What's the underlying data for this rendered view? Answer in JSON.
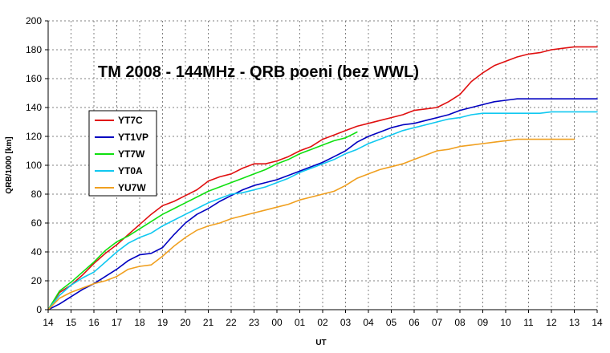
{
  "chart_data": {
    "type": "line",
    "title": "TM 2008 - 144MHz - QRB poeni (bez WWL)",
    "xlabel": "UT",
    "ylabel": "QRB/1000 [km]",
    "ylim": [
      0,
      200
    ],
    "yticks": [
      0,
      20,
      40,
      60,
      80,
      100,
      120,
      140,
      160,
      180,
      200
    ],
    "xlim": [
      0,
      24
    ],
    "xtick_labels": [
      "14",
      "15",
      "16",
      "17",
      "18",
      "19",
      "20",
      "21",
      "22",
      "23",
      "00",
      "01",
      "02",
      "03",
      "04",
      "05",
      "06",
      "07",
      "08",
      "09",
      "10",
      "11",
      "12",
      "13",
      "14"
    ],
    "grid": true,
    "legend_position": "left",
    "series": [
      {
        "name": "YT7C",
        "color": "#e01010",
        "x": [
          0,
          0.5,
          1,
          1.5,
          2,
          2.5,
          3,
          3.5,
          4,
          4.5,
          5,
          5.5,
          6,
          6.5,
          7,
          7.5,
          8,
          8.5,
          9,
          9.5,
          10,
          10.5,
          11,
          11.5,
          12,
          12.5,
          13,
          13.5,
          14,
          14.5,
          15,
          15.5,
          16,
          16.5,
          17,
          17.5,
          18,
          18.5,
          19,
          19.5,
          20,
          20.5,
          21,
          21.5,
          22,
          22.5,
          23,
          23.5,
          24
        ],
        "y": [
          0,
          12,
          17,
          24,
          32,
          39,
          45,
          52,
          59,
          66,
          72,
          75,
          79,
          83,
          89,
          92,
          94,
          98,
          101,
          101,
          103,
          106,
          110,
          113,
          118,
          121,
          124,
          127,
          129,
          131,
          133,
          135,
          138,
          139,
          140,
          144,
          149,
          158,
          164,
          169,
          172,
          175,
          177,
          178,
          180,
          181,
          182,
          182,
          182
        ]
      },
      {
        "name": "YT1VP",
        "color": "#0000c0",
        "x": [
          0,
          0.5,
          1,
          1.5,
          2,
          2.5,
          3,
          3.5,
          4,
          4.5,
          5,
          5.5,
          6,
          6.5,
          7,
          7.5,
          8,
          8.5,
          9,
          9.5,
          10,
          10.5,
          11,
          11.5,
          12,
          12.5,
          13,
          13.5,
          14,
          14.5,
          15,
          15.5,
          16,
          16.5,
          17,
          17.5,
          18,
          18.5,
          19,
          19.5,
          20,
          20.5,
          21,
          21.5,
          22,
          22.5,
          23,
          23.5,
          24
        ],
        "y": [
          0,
          4,
          9,
          14,
          18,
          23,
          28,
          34,
          38,
          39,
          43,
          52,
          60,
          66,
          70,
          75,
          79,
          83,
          86,
          88,
          90,
          93,
          96,
          99,
          102,
          106,
          110,
          116,
          120,
          123,
          126,
          128,
          129,
          131,
          133,
          135,
          138,
          140,
          142,
          144,
          145,
          146,
          146,
          146,
          146,
          146,
          146,
          146,
          146
        ]
      },
      {
        "name": "YT7W",
        "color": "#10e010",
        "x": [
          0,
          0.5,
          1,
          1.5,
          2,
          2.5,
          3,
          3.5,
          4,
          4.5,
          5,
          5.5,
          6,
          6.5,
          7,
          7.5,
          8,
          8.5,
          9,
          9.5,
          10,
          10.5,
          11,
          11.5,
          12,
          12.5,
          13,
          13.5
        ],
        "y": [
          0,
          13,
          19,
          26,
          33,
          41,
          47,
          51,
          56,
          61,
          66,
          70,
          74,
          78,
          82,
          85,
          88,
          91,
          94,
          97,
          101,
          104,
          108,
          111,
          114,
          117,
          119,
          123
        ]
      },
      {
        "name": "YT0A",
        "color": "#10c8f0",
        "x": [
          0,
          0.5,
          1,
          1.5,
          2,
          2.5,
          3,
          3.5,
          4,
          4.5,
          5,
          5.5,
          6,
          6.5,
          7,
          7.5,
          8,
          8.5,
          9,
          9.5,
          10,
          10.5,
          11,
          11.5,
          12,
          12.5,
          13,
          13.5,
          14,
          14.5,
          15,
          15.5,
          16,
          16.5,
          17,
          17.5,
          18,
          18.5,
          19,
          19.5,
          20,
          20.5,
          21,
          21.5,
          22,
          22.5,
          23,
          23.5,
          24
        ],
        "y": [
          0,
          10,
          17,
          22,
          26,
          33,
          40,
          46,
          50,
          53,
          58,
          62,
          66,
          70,
          74,
          77,
          80,
          81,
          83,
          85,
          88,
          91,
          95,
          98,
          101,
          104,
          108,
          111,
          115,
          118,
          121,
          124,
          126,
          128,
          130,
          132,
          133,
          135,
          136,
          136,
          136,
          136,
          136,
          136,
          137,
          137,
          137,
          137,
          137
        ]
      },
      {
        "name": "YU7W",
        "color": "#f0a020",
        "x": [
          0,
          0.5,
          1,
          1.5,
          2,
          2.5,
          3,
          3.5,
          4,
          4.5,
          5,
          5.5,
          6,
          6.5,
          7,
          7.5,
          8,
          8.5,
          9,
          9.5,
          10,
          10.5,
          11,
          11.5,
          12,
          12.5,
          13,
          13.5,
          14,
          14.5,
          15,
          15.5,
          16,
          16.5,
          17,
          17.5,
          18,
          18.5,
          19,
          19.5,
          20,
          20.5,
          21,
          21.5,
          22,
          22.5,
          23
        ],
        "y": [
          0,
          8,
          12,
          15,
          18,
          20,
          23,
          28,
          30,
          31,
          37,
          44,
          50,
          55,
          58,
          60,
          63,
          65,
          67,
          69,
          71,
          73,
          76,
          78,
          80,
          82,
          86,
          91,
          94,
          97,
          99,
          101,
          104,
          107,
          110,
          111,
          113,
          114,
          115,
          116,
          117,
          118,
          118,
          118,
          118,
          118,
          118
        ]
      }
    ]
  }
}
